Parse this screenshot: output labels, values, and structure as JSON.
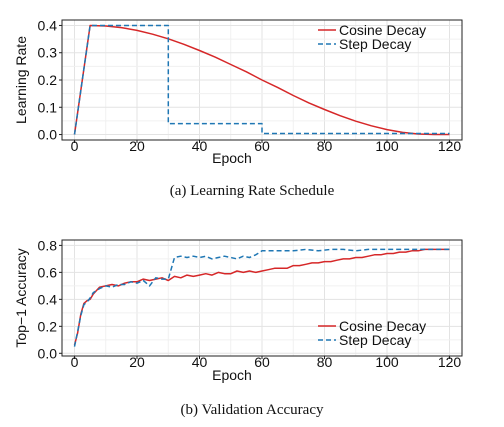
{
  "chart_data": [
    {
      "type": "line",
      "caption": "(a) Learning Rate Schedule",
      "xlabel": "Epoch",
      "ylabel": "Learning Rate",
      "xlim": [
        -4,
        124
      ],
      "ylim": [
        -0.02,
        0.42
      ],
      "xticks": [
        0,
        20,
        40,
        60,
        80,
        100,
        120
      ],
      "yticks": [
        0.0,
        0.1,
        0.2,
        0.3,
        0.4
      ],
      "ytick_labels": [
        "0.0",
        "0.1",
        "0.2",
        "0.3",
        "0.4"
      ],
      "grid": true,
      "legend_position": "top-right",
      "series": [
        {
          "name": "Cosine Decay",
          "style": "solid",
          "color": "#d62728",
          "x": [
            0,
            5,
            10,
            15,
            20,
            25,
            30,
            35,
            40,
            45,
            50,
            55,
            60,
            65,
            70,
            75,
            80,
            85,
            90,
            95,
            100,
            105,
            110,
            115,
            120
          ],
          "y": [
            0.0,
            0.4,
            0.398,
            0.392,
            0.382,
            0.368,
            0.351,
            0.331,
            0.308,
            0.284,
            0.257,
            0.23,
            0.2,
            0.173,
            0.143,
            0.116,
            0.092,
            0.069,
            0.049,
            0.032,
            0.018,
            0.008,
            0.002,
            0.0,
            0.0
          ]
        },
        {
          "name": "Step Decay",
          "style": "dashed",
          "color": "#1f77b4",
          "x": [
            0,
            5,
            30,
            30,
            60,
            60,
            120
          ],
          "y": [
            0.0,
            0.4,
            0.4,
            0.04,
            0.04,
            0.004,
            0.004
          ]
        }
      ]
    },
    {
      "type": "line",
      "caption": "(b) Validation Accuracy",
      "xlabel": "Epoch",
      "ylabel": "Top−1 Accuracy",
      "xlim": [
        -4,
        124
      ],
      "ylim": [
        -0.02,
        0.84
      ],
      "xticks": [
        0,
        20,
        40,
        60,
        80,
        100,
        120
      ],
      "yticks": [
        0.0,
        0.2,
        0.4,
        0.6,
        0.8
      ],
      "ytick_labels": [
        "0.0",
        "0.2",
        "0.4",
        "0.6",
        "0.8"
      ],
      "grid": true,
      "legend_position": "bottom-right",
      "series": [
        {
          "name": "Cosine Decay",
          "style": "solid",
          "color": "#d62728",
          "x": [
            0,
            1,
            2,
            3,
            4,
            5,
            6,
            8,
            10,
            12,
            14,
            16,
            18,
            20,
            22,
            24,
            26,
            28,
            30,
            32,
            34,
            36,
            38,
            40,
            42,
            44,
            46,
            48,
            50,
            52,
            54,
            56,
            58,
            60,
            62,
            64,
            66,
            68,
            70,
            72,
            74,
            76,
            78,
            80,
            82,
            84,
            86,
            88,
            90,
            92,
            94,
            96,
            98,
            100,
            102,
            104,
            106,
            108,
            110,
            112,
            114,
            116,
            118,
            120
          ],
          "y": [
            0.06,
            0.15,
            0.29,
            0.37,
            0.39,
            0.4,
            0.44,
            0.49,
            0.5,
            0.51,
            0.5,
            0.52,
            0.53,
            0.53,
            0.55,
            0.54,
            0.55,
            0.56,
            0.54,
            0.57,
            0.56,
            0.58,
            0.57,
            0.58,
            0.59,
            0.58,
            0.6,
            0.59,
            0.59,
            0.61,
            0.6,
            0.61,
            0.6,
            0.61,
            0.62,
            0.63,
            0.63,
            0.63,
            0.65,
            0.65,
            0.66,
            0.67,
            0.67,
            0.68,
            0.68,
            0.69,
            0.7,
            0.7,
            0.71,
            0.71,
            0.72,
            0.73,
            0.73,
            0.74,
            0.74,
            0.75,
            0.75,
            0.76,
            0.76,
            0.77,
            0.77,
            0.77,
            0.77,
            0.77
          ]
        },
        {
          "name": "Step Decay",
          "style": "dashed",
          "color": "#1f77b4",
          "x": [
            0,
            1,
            2,
            3,
            4,
            5,
            6,
            8,
            10,
            12,
            14,
            16,
            18,
            20,
            22,
            24,
            26,
            28,
            30,
            32,
            34,
            36,
            38,
            40,
            42,
            44,
            46,
            48,
            50,
            52,
            54,
            56,
            58,
            60,
            62,
            66,
            70,
            74,
            78,
            82,
            86,
            90,
            94,
            98,
            102,
            106,
            110,
            114,
            118,
            120
          ],
          "y": [
            0.05,
            0.16,
            0.28,
            0.36,
            0.38,
            0.41,
            0.45,
            0.48,
            0.5,
            0.49,
            0.51,
            0.51,
            0.53,
            0.52,
            0.54,
            0.5,
            0.56,
            0.55,
            0.55,
            0.71,
            0.72,
            0.71,
            0.72,
            0.71,
            0.72,
            0.7,
            0.71,
            0.72,
            0.71,
            0.7,
            0.72,
            0.71,
            0.73,
            0.76,
            0.76,
            0.76,
            0.76,
            0.77,
            0.76,
            0.77,
            0.77,
            0.76,
            0.77,
            0.77,
            0.77,
            0.77,
            0.77,
            0.77,
            0.77,
            0.77
          ]
        }
      ]
    }
  ]
}
